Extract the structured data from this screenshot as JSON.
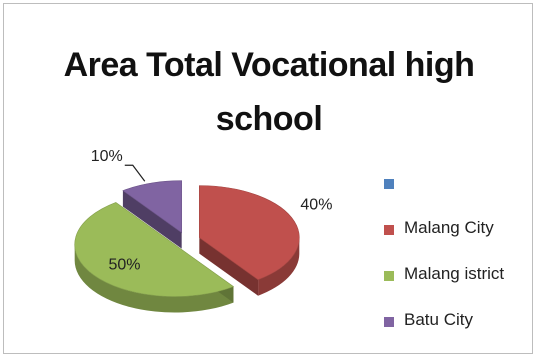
{
  "chart_data": {
    "type": "pie",
    "title": "Area Total Vocational high school",
    "title_lines": [
      "Area Total Vocational high",
      "school"
    ],
    "slices": [
      {
        "name": "Malang City",
        "value": 40,
        "label": "40%",
        "color": "#c0504d"
      },
      {
        "name": "Malang istrict",
        "value": 50,
        "label": "50%",
        "color": "#9bbb59"
      },
      {
        "name": "Batu City",
        "value": 10,
        "label": "10%",
        "color": "#8064a2"
      }
    ],
    "legend": {
      "position": "right",
      "entries": [
        {
          "label": "",
          "color": "#4f81bd"
        },
        {
          "label": "Malang City",
          "color": "#c0504d"
        },
        {
          "label": "Malang istrict",
          "color": "#9bbb59"
        },
        {
          "label": "Batu City",
          "color": "#8064a2"
        }
      ]
    },
    "style": "3d-exploded"
  }
}
